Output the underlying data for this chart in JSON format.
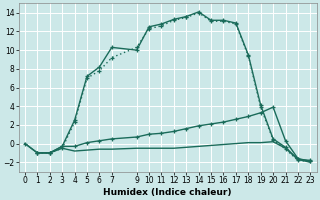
{
  "xlabel": "Humidex (Indice chaleur)",
  "bg_color": "#cce8e8",
  "grid_color": "#ffffff",
  "line_color": "#1a6b5a",
  "xlim": [
    -0.5,
    23.5
  ],
  "ylim": [
    -3,
    15
  ],
  "xticks": [
    0,
    1,
    2,
    3,
    4,
    5,
    6,
    7,
    9,
    10,
    11,
    12,
    13,
    14,
    15,
    16,
    17,
    18,
    19,
    20,
    21,
    22,
    23
  ],
  "yticks": [
    -2,
    0,
    2,
    4,
    6,
    8,
    10,
    12,
    14
  ],
  "s1_x": [
    1,
    2,
    3,
    4,
    5,
    6,
    7,
    9,
    10,
    11,
    12,
    13,
    14,
    15,
    16,
    17,
    18,
    19,
    20,
    21,
    22,
    23
  ],
  "s1_y": [
    -1.0,
    -1.0,
    -0.5,
    2.3,
    7.0,
    7.8,
    9.2,
    10.3,
    12.3,
    12.6,
    13.2,
    13.5,
    14.0,
    13.1,
    13.1,
    12.8,
    9.4,
    3.9,
    0.4,
    -0.6,
    -1.8,
    -1.9
  ],
  "s2_x": [
    1,
    2,
    3,
    4,
    5,
    6,
    7,
    9,
    10,
    11,
    12,
    13,
    14,
    15,
    16,
    17,
    18,
    19,
    20,
    21,
    22,
    23
  ],
  "s2_y": [
    -1.0,
    -1.0,
    -0.3,
    2.5,
    7.2,
    8.2,
    10.3,
    10.0,
    12.5,
    12.8,
    13.3,
    13.6,
    14.1,
    13.2,
    13.2,
    12.9,
    9.5,
    4.1,
    0.5,
    -0.4,
    -1.7,
    -1.8
  ],
  "s3_x": [
    0,
    1,
    2,
    3,
    4,
    5,
    6,
    7,
    9,
    10,
    11,
    12,
    13,
    14,
    15,
    16,
    17,
    18,
    19,
    20,
    21,
    22,
    23
  ],
  "s3_y": [
    0.0,
    -1.0,
    -1.0,
    -0.3,
    -0.3,
    0.1,
    0.3,
    0.5,
    0.7,
    1.0,
    1.1,
    1.3,
    1.6,
    1.9,
    2.1,
    2.3,
    2.6,
    2.9,
    3.3,
    3.9,
    0.3,
    -1.6,
    -1.9
  ],
  "s4_x": [
    0,
    1,
    2,
    3,
    4,
    5,
    6,
    7,
    9,
    10,
    11,
    12,
    13,
    14,
    15,
    16,
    17,
    18,
    19,
    20,
    21,
    22,
    23
  ],
  "s4_y": [
    0.0,
    -1.0,
    -1.0,
    -0.5,
    -0.8,
    -0.7,
    -0.6,
    -0.6,
    -0.5,
    -0.5,
    -0.5,
    -0.5,
    -0.4,
    -0.3,
    -0.2,
    -0.1,
    0.0,
    0.1,
    0.1,
    0.2,
    -0.5,
    -1.7,
    -2.0
  ]
}
